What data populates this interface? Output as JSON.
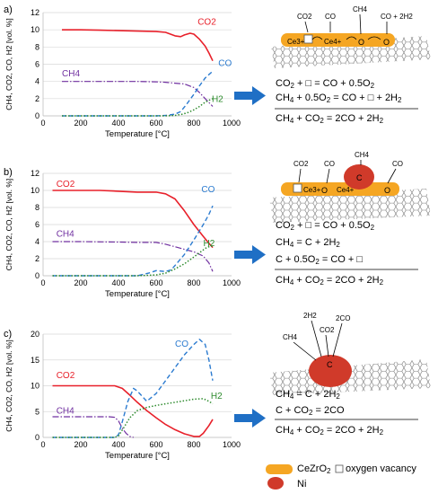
{
  "panels": [
    {
      "label": "a)",
      "equations": [
        "CO2 + □ = CO + 0.5O2",
        "CH4 + 0.5O2 = CO + □ + 2H2"
      ],
      "overall": "CH4 + CO2 = 2CO + 2H2",
      "scheme_labels": [
        "CO2",
        "CO",
        "CH4",
        "CO + 2H2",
        "Ce3+",
        "Ce4+"
      ]
    },
    {
      "label": "b)",
      "equations": [
        "CO2 + □ = CO + 0.5O2",
        "CH4 = C + 2H2",
        "C + 0.5O2 = CO + □"
      ],
      "overall": "CH4 + CO2 = 2CO + 2H2",
      "scheme_labels": [
        "CO2",
        "CO",
        "CH4",
        "CO",
        "C",
        "Ce3+",
        "Ce4+"
      ]
    },
    {
      "label": "c)",
      "equations": [
        "CH4 = C + 2H2",
        "C + CO2 = 2CO"
      ],
      "overall": "CH4 + CO2 = 2CO + 2H2",
      "scheme_labels": [
        "2H2",
        "CO2",
        "2CO",
        "CH4",
        "C"
      ]
    }
  ],
  "legend": {
    "cezro2": "CeZrO2",
    "vacancy": "oxygen vacancy",
    "ni": "Ni"
  },
  "colors": {
    "CO2": "#e8202a",
    "CO": "#2b7bd0",
    "CH4": "#7030a0",
    "H2": "#2e8b2e",
    "arrow": "#1f6fc5",
    "support": "#f5a623",
    "ni": "#d03a2a"
  },
  "chart_data": [
    {
      "type": "line",
      "xlabel": "Temperature [°C]",
      "ylabel": "CH4, CO2, CO, H2 [vol. %]",
      "xlim": [
        0,
        1000
      ],
      "ylim": [
        0,
        12
      ],
      "xticks": [
        0,
        200,
        400,
        600,
        800,
        1000
      ],
      "yticks": [
        0,
        2,
        4,
        6,
        8,
        10,
        12
      ],
      "series_labels": {
        "CO2": "CO2",
        "CH4": "CH4",
        "CO": "CO",
        "H2": "H2"
      },
      "series": [
        {
          "name": "CO2",
          "x": [
            100,
            200,
            300,
            400,
            500,
            600,
            650,
            700,
            730,
            750,
            780,
            800,
            830,
            860,
            880,
            900
          ],
          "y": [
            10,
            10,
            9.95,
            9.9,
            9.85,
            9.8,
            9.7,
            9.3,
            9.2,
            9.4,
            9.6,
            9.5,
            8.9,
            8.1,
            7.3,
            6.4
          ]
        },
        {
          "name": "CH4",
          "x": [
            100,
            200,
            300,
            400,
            500,
            600,
            650,
            700,
            750,
            800,
            830,
            860,
            900
          ],
          "y": [
            4,
            4,
            4,
            4,
            4,
            3.95,
            3.9,
            3.8,
            3.7,
            3.3,
            2.7,
            2,
            1.1
          ]
        },
        {
          "name": "CO",
          "x": [
            100,
            300,
            500,
            600,
            650,
            700,
            730,
            760,
            800,
            830,
            860,
            900
          ],
          "y": [
            0,
            0,
            0,
            0,
            0.05,
            0.2,
            0.5,
            1.3,
            2.5,
            3.5,
            4.4,
            5.2
          ]
        },
        {
          "name": "H2",
          "x": [
            100,
            300,
            500,
            600,
            650,
            700,
            740,
            770,
            800,
            830,
            860,
            900
          ],
          "y": [
            0,
            0,
            0,
            0,
            0,
            0.05,
            0.2,
            0.4,
            0.7,
            1.1,
            1.6,
            2
          ]
        }
      ]
    },
    {
      "type": "line",
      "xlabel": "Temperature [°C]",
      "ylabel": "CH4, CO2, CO, H2 [vol. %]",
      "xlim": [
        0,
        1000
      ],
      "ylim": [
        0,
        12
      ],
      "xticks": [
        0,
        200,
        400,
        600,
        800,
        1000
      ],
      "yticks": [
        0,
        2,
        4,
        6,
        8,
        10,
        12
      ],
      "series_labels": {
        "CO2": "CO2",
        "CH4": "CH4",
        "CO": "CO",
        "H2": "H2"
      },
      "series": [
        {
          "name": "CO2",
          "x": [
            50,
            100,
            200,
            300,
            400,
            500,
            600,
            650,
            700,
            750,
            800,
            850,
            880,
            900
          ],
          "y": [
            10,
            10,
            10,
            10,
            9.9,
            9.8,
            9.8,
            9.6,
            9,
            7.6,
            6,
            4.6,
            3.8,
            3.3
          ]
        },
        {
          "name": "CH4",
          "x": [
            50,
            200,
            400,
            500,
            600,
            650,
            700,
            750,
            800,
            850,
            880,
            900
          ],
          "y": [
            4,
            4,
            3.95,
            3.9,
            3.9,
            3.7,
            3.4,
            3.1,
            2.8,
            2.3,
            1.5,
            0.5
          ]
        },
        {
          "name": "CO",
          "x": [
            50,
            300,
            500,
            560,
            600,
            650,
            680,
            700,
            750,
            800,
            850,
            880,
            900
          ],
          "y": [
            0,
            0,
            0,
            0.3,
            0.6,
            0.5,
            0.7,
            1.2,
            2.5,
            4.2,
            6,
            7.2,
            8.2
          ]
        },
        {
          "name": "H2",
          "x": [
            50,
            300,
            500,
            600,
            650,
            700,
            750,
            800,
            830,
            860,
            880,
            900
          ],
          "y": [
            0,
            0,
            0,
            0.1,
            0.3,
            0.8,
            1.4,
            2.2,
            2.7,
            3.2,
            3.4,
            3.5
          ]
        }
      ]
    },
    {
      "type": "line",
      "xlabel": "Temperature [°C]",
      "ylabel": "CH4, CO2, CO, H2 [vol. %]",
      "xlim": [
        0,
        1000
      ],
      "ylim": [
        0,
        20
      ],
      "xticks": [
        0,
        200,
        400,
        600,
        800,
        1000
      ],
      "yticks": [
        0,
        5,
        10,
        15,
        20
      ],
      "series_labels": {
        "CO2": "CO2",
        "CH4": "CH4",
        "CO": "CO",
        "H2": "H2"
      },
      "series": [
        {
          "name": "CO2",
          "x": [
            50,
            100,
            200,
            300,
            380,
            420,
            460,
            500,
            550,
            600,
            650,
            700,
            750,
            800,
            830,
            850,
            880,
            900
          ],
          "y": [
            10,
            10,
            10,
            10,
            10,
            9.5,
            8.2,
            6.8,
            5.2,
            3.8,
            2.5,
            1.5,
            0.7,
            0.2,
            0.2,
            0.8,
            2.3,
            3.5
          ]
        },
        {
          "name": "CH4",
          "x": [
            50,
            200,
            350,
            380,
            400,
            420,
            440,
            460,
            480
          ],
          "y": [
            4,
            4,
            4,
            3.9,
            3.2,
            1.8,
            0.8,
            0.2,
            0
          ]
        },
        {
          "name": "CO",
          "x": [
            50,
            300,
            380,
            400,
            420,
            450,
            480,
            500,
            550,
            600,
            650,
            700,
            750,
            800,
            830,
            860,
            880,
            900
          ],
          "y": [
            0,
            0,
            0,
            0.5,
            3,
            7,
            9.5,
            9,
            7,
            8.5,
            11,
            13.5,
            16,
            18,
            19,
            18,
            15,
            11
          ]
        },
        {
          "name": "H2",
          "x": [
            50,
            300,
            380,
            400,
            430,
            460,
            500,
            550,
            600,
            650,
            700,
            750,
            800,
            850,
            880,
            900
          ],
          "y": [
            0,
            0,
            0,
            0.3,
            2,
            3.8,
            5.2,
            5.8,
            6.2,
            6.5,
            6.8,
            7.1,
            7.4,
            7.5,
            7,
            6.5
          ]
        }
      ]
    }
  ]
}
